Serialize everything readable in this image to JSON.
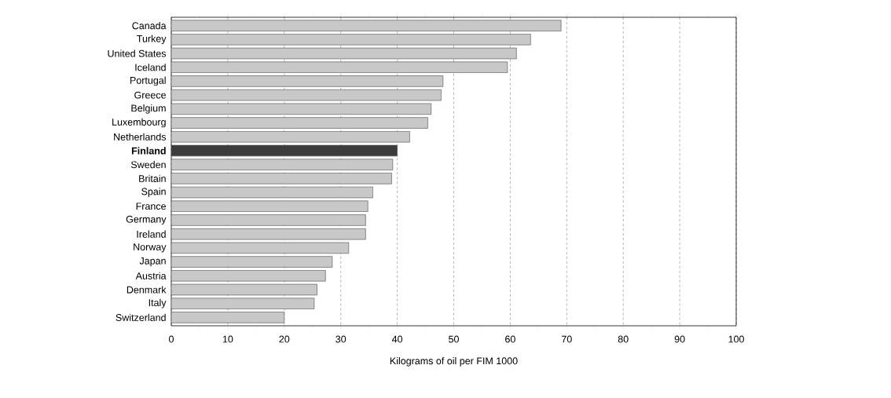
{
  "chart_data": {
    "type": "bar",
    "orientation": "horizontal",
    "xlabel": "Kilograms of oil per FIM 1000",
    "categories": [
      "Canada",
      "Turkey",
      "United States",
      "Iceland",
      "Portugal",
      "Greece",
      "Belgium",
      "Luxembourg",
      "Netherlands",
      "**Finland**",
      "Sweden",
      "Britain",
      "Spain",
      "France",
      "Germany",
      "Ireland",
      "Norway",
      "Japan",
      "Austria",
      "Denmark",
      "Italy",
      "Switzerland"
    ],
    "values": [
      69,
      63.6,
      61.1,
      59.5,
      48.1,
      47.8,
      46,
      45.4,
      42.2,
      40,
      39.2,
      39,
      35.7,
      34.8,
      34.4,
      34.4,
      31.4,
      28.5,
      27.3,
      25.8,
      25.3,
      20
    ],
    "colors": [
      "#c8c8c8",
      "#c8c8c8",
      "#c8c8c8",
      "#c8c8c8",
      "#c8c8c8",
      "#c8c8c8",
      "#c8c8c8",
      "#c8c8c8",
      "#c8c8c8",
      "#3c3c3c",
      "#c8c8c8",
      "#c8c8c8",
      "#c8c8c8",
      "#c8c8c8",
      "#c8c8c8",
      "#c8c8c8",
      "#c8c8c8",
      "#c8c8c8",
      "#c8c8c8",
      "#c8c8c8",
      "#c8c8c8",
      "#c8c8c8"
    ],
    "xlim": [
      0,
      100
    ],
    "xticks": [
      0,
      10,
      20,
      30,
      40,
      50,
      60,
      70,
      80,
      90,
      100
    ],
    "grid": "x",
    "line_style": "dashed"
  }
}
